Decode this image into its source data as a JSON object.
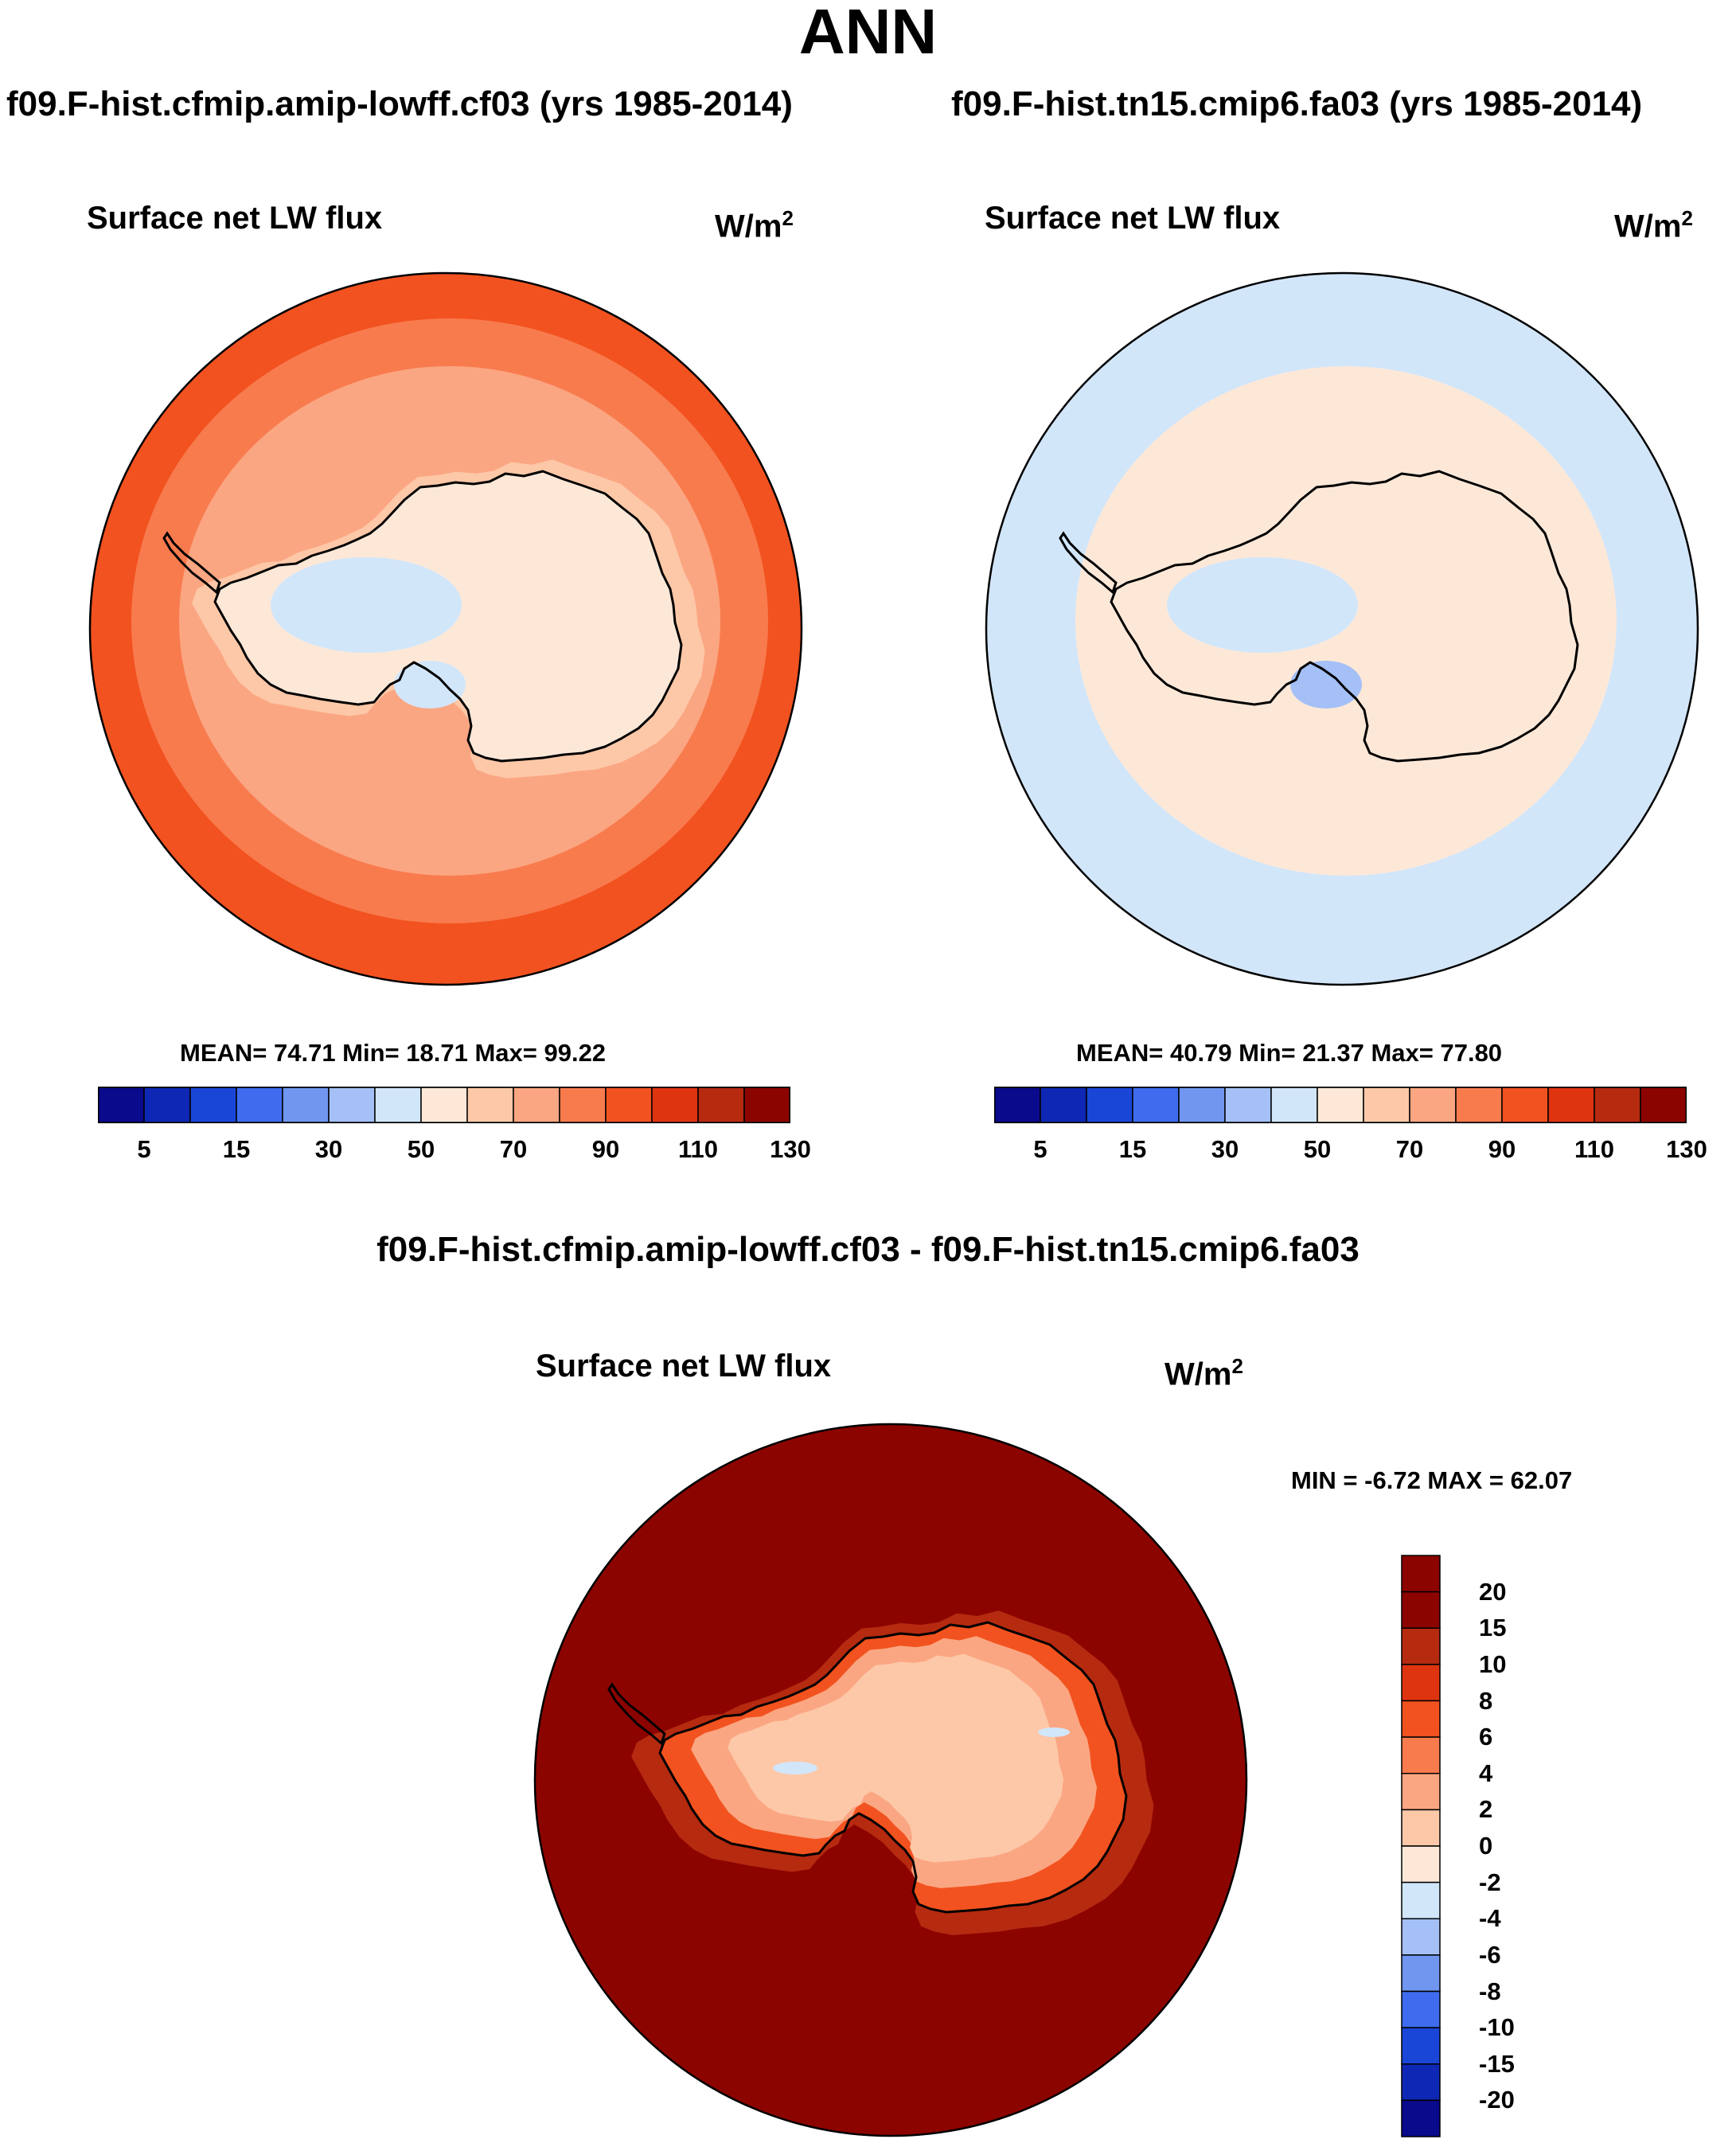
{
  "main_title": "ANN",
  "case_titles": {
    "left": "f09.F-hist.cfmip.amip-lowff.cf03 (yrs 1985-2014)",
    "right": "f09.F-hist.tn15.cmip6.fa03 (yrs 1985-2014)",
    "diff": "f09.F-hist.cfmip.amip-lowff.cf03 - f09.F-hist.tn15.cmip6.fa03"
  },
  "colors": {
    "coastline": "#000000",
    "abs_palette": [
      "#0a0a8c",
      "#0e27b4",
      "#1a46d8",
      "#3f6cee",
      "#7096f0",
      "#a4c0f6",
      "#d2e6fa",
      "#fde8d8",
      "#fdc8a8",
      "#fba682",
      "#f87b4e",
      "#f2521f",
      "#df3410",
      "#b62a10",
      "#8c0400"
    ],
    "diff_palette": [
      "#0a0a8c",
      "#0e27b4",
      "#1a46d8",
      "#3f6cee",
      "#7096f0",
      "#a4c0f6",
      "#d2e6fa",
      "#fde8d8",
      "#fdc8a8",
      "#fba682",
      "#f87b4e",
      "#f2521f",
      "#df3410",
      "#b62a10",
      "#8c0400"
    ]
  },
  "chart_data": [
    {
      "type": "heatmap",
      "projection": "south-polar stereographic",
      "title": "Surface net LW flux",
      "units": "W/m",
      "units_superscript": "2",
      "stats_text": "MEAN=  74.71   Min=  18.71   Max=  99.22",
      "stats": {
        "mean": 74.71,
        "min": 18.71,
        "max": 99.22
      },
      "colorbar_ticks": [
        "5",
        "15",
        "30",
        "50",
        "70",
        "90",
        "110",
        "130"
      ],
      "colorbar_levels": [
        5,
        10,
        15,
        20,
        30,
        40,
        50,
        60,
        70,
        80,
        90,
        100,
        110,
        120,
        130
      ],
      "region_values": {
        "open_ocean": 95,
        "mid_ocean": 85,
        "sea_ice_zone": 75,
        "coast": 65,
        "interior": 55,
        "west_lows": 45,
        "ross_shelf": 40
      }
    },
    {
      "type": "heatmap",
      "projection": "south-polar stereographic",
      "title": "Surface net LW flux",
      "units": "W/m",
      "units_superscript": "2",
      "stats_text": "MEAN=  40.79   Min=  21.37   Max=  77.80",
      "stats": {
        "mean": 40.79,
        "min": 21.37,
        "max": 77.8
      },
      "colorbar_ticks": [
        "5",
        "15",
        "30",
        "50",
        "70",
        "90",
        "110",
        "130"
      ],
      "colorbar_levels": [
        5,
        10,
        15,
        20,
        30,
        40,
        50,
        60,
        70,
        80,
        90,
        100,
        110,
        120,
        130
      ],
      "region_values": {
        "open_ocean": 40,
        "mid_ocean": 45,
        "sea_ice_zone": 50,
        "coast": 55,
        "interior": 55,
        "west_lows": 40,
        "ross_shelf": 35
      }
    },
    {
      "type": "heatmap",
      "projection": "south-polar stereographic",
      "title": "Surface net LW flux",
      "units": "W/m",
      "units_superscript": "2",
      "stats_text": "MIN =  -6.72 MAX =  62.07",
      "stats": {
        "min": -6.72,
        "max": 62.07
      },
      "colorbar_ticks": [
        "20",
        "15",
        "10",
        "8",
        "6",
        "4",
        "2",
        "0",
        "-2",
        "-4",
        "-6",
        "-8",
        "-10",
        "-15",
        "-20"
      ],
      "colorbar_levels": [
        -20,
        -15,
        -10,
        -8,
        -6,
        -4,
        -2,
        0,
        2,
        4,
        6,
        8,
        10,
        15,
        20
      ],
      "region_values": {
        "open_ocean": 25,
        "shelf": 12,
        "coast": 6,
        "interior": 3,
        "core": 1,
        "neg_spots": -3
      }
    }
  ]
}
